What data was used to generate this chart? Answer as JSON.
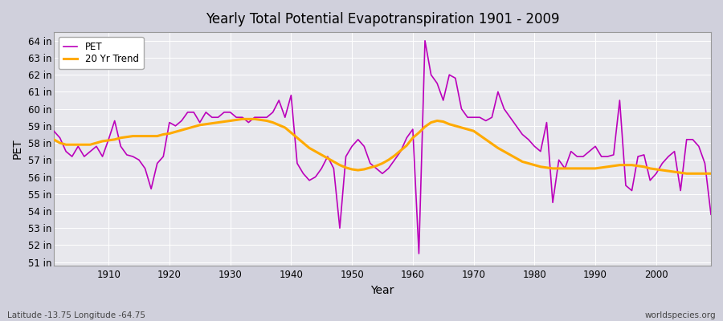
{
  "title": "Yearly Total Potential Evapotranspiration 1901 - 2009",
  "xlabel": "Year",
  "ylabel": "PET",
  "bottom_left": "Latitude -13.75 Longitude -64.75",
  "bottom_right": "worldspecies.org",
  "pet_color": "#bb00bb",
  "trend_color": "#ffaa00",
  "bg_color": "#e8e8ed",
  "fig_color": "#d0d0dc",
  "ylim": [
    50.8,
    64.5
  ],
  "yticks": [
    51,
    52,
    53,
    54,
    55,
    56,
    57,
    58,
    59,
    60,
    61,
    62,
    63,
    64
  ],
  "years": [
    1901,
    1902,
    1903,
    1904,
    1905,
    1906,
    1907,
    1908,
    1909,
    1910,
    1911,
    1912,
    1913,
    1914,
    1915,
    1916,
    1917,
    1918,
    1919,
    1920,
    1921,
    1922,
    1923,
    1924,
    1925,
    1926,
    1927,
    1928,
    1929,
    1930,
    1931,
    1932,
    1933,
    1934,
    1935,
    1936,
    1937,
    1938,
    1939,
    1940,
    1941,
    1942,
    1943,
    1944,
    1945,
    1946,
    1947,
    1948,
    1949,
    1950,
    1951,
    1952,
    1953,
    1954,
    1955,
    1956,
    1957,
    1958,
    1959,
    1960,
    1961,
    1962,
    1963,
    1964,
    1965,
    1966,
    1967,
    1968,
    1969,
    1970,
    1971,
    1972,
    1973,
    1974,
    1975,
    1976,
    1977,
    1978,
    1979,
    1980,
    1981,
    1982,
    1983,
    1984,
    1985,
    1986,
    1987,
    1988,
    1989,
    1990,
    1991,
    1992,
    1993,
    1994,
    1995,
    1996,
    1997,
    1998,
    1999,
    2000,
    2001,
    2002,
    2003,
    2004,
    2005,
    2006,
    2007,
    2008,
    2009
  ],
  "pet_values": [
    58.7,
    58.3,
    57.5,
    57.2,
    57.8,
    57.2,
    57.5,
    57.8,
    57.2,
    58.2,
    59.3,
    57.8,
    57.3,
    57.2,
    57.0,
    56.5,
    55.3,
    56.8,
    57.2,
    59.2,
    59.0,
    59.3,
    59.8,
    59.8,
    59.2,
    59.8,
    59.5,
    59.5,
    59.8,
    59.8,
    59.5,
    59.5,
    59.2,
    59.5,
    59.5,
    59.5,
    59.8,
    60.5,
    59.5,
    60.8,
    56.8,
    56.2,
    55.8,
    56.0,
    56.5,
    57.2,
    56.5,
    53.0,
    57.2,
    57.8,
    58.2,
    57.8,
    56.8,
    56.5,
    56.2,
    56.5,
    57.0,
    57.5,
    58.3,
    58.8,
    51.5,
    64.0,
    62.0,
    61.5,
    60.5,
    62.0,
    61.8,
    60.0,
    59.5,
    59.5,
    59.5,
    59.3,
    59.5,
    61.0,
    60.0,
    59.5,
    59.0,
    58.5,
    58.2,
    57.8,
    57.5,
    59.2,
    54.5,
    57.0,
    56.5,
    57.5,
    57.2,
    57.2,
    57.5,
    57.8,
    57.2,
    57.2,
    57.3,
    60.5,
    55.5,
    55.2,
    57.2,
    57.3,
    55.8,
    56.2,
    56.8,
    57.2,
    57.5,
    55.2,
    58.2,
    58.2,
    57.8,
    56.8,
    53.8
  ],
  "trend_values": [
    58.2,
    58.0,
    57.9,
    57.9,
    57.9,
    57.9,
    57.9,
    58.0,
    58.1,
    58.15,
    58.2,
    58.3,
    58.35,
    58.4,
    58.4,
    58.4,
    58.4,
    58.4,
    58.5,
    58.55,
    58.65,
    58.75,
    58.85,
    58.95,
    59.05,
    59.1,
    59.15,
    59.2,
    59.25,
    59.3,
    59.35,
    59.4,
    59.4,
    59.4,
    59.35,
    59.3,
    59.2,
    59.05,
    58.9,
    58.6,
    58.3,
    58.0,
    57.7,
    57.5,
    57.3,
    57.1,
    56.9,
    56.7,
    56.55,
    56.45,
    56.4,
    56.45,
    56.55,
    56.65,
    56.8,
    57.0,
    57.25,
    57.55,
    57.85,
    58.3,
    58.6,
    58.95,
    59.2,
    59.3,
    59.25,
    59.1,
    59.0,
    58.9,
    58.8,
    58.7,
    58.45,
    58.2,
    57.95,
    57.7,
    57.5,
    57.3,
    57.1,
    56.9,
    56.8,
    56.7,
    56.6,
    56.55,
    56.5,
    56.5,
    56.5,
    56.5,
    56.5,
    56.5,
    56.5,
    56.5,
    56.55,
    56.6,
    56.65,
    56.7,
    56.7,
    56.7,
    56.65,
    56.6,
    56.5,
    56.45,
    56.4,
    56.35,
    56.3,
    56.25,
    56.2,
    56.2,
    56.2,
    56.2,
    56.2
  ]
}
